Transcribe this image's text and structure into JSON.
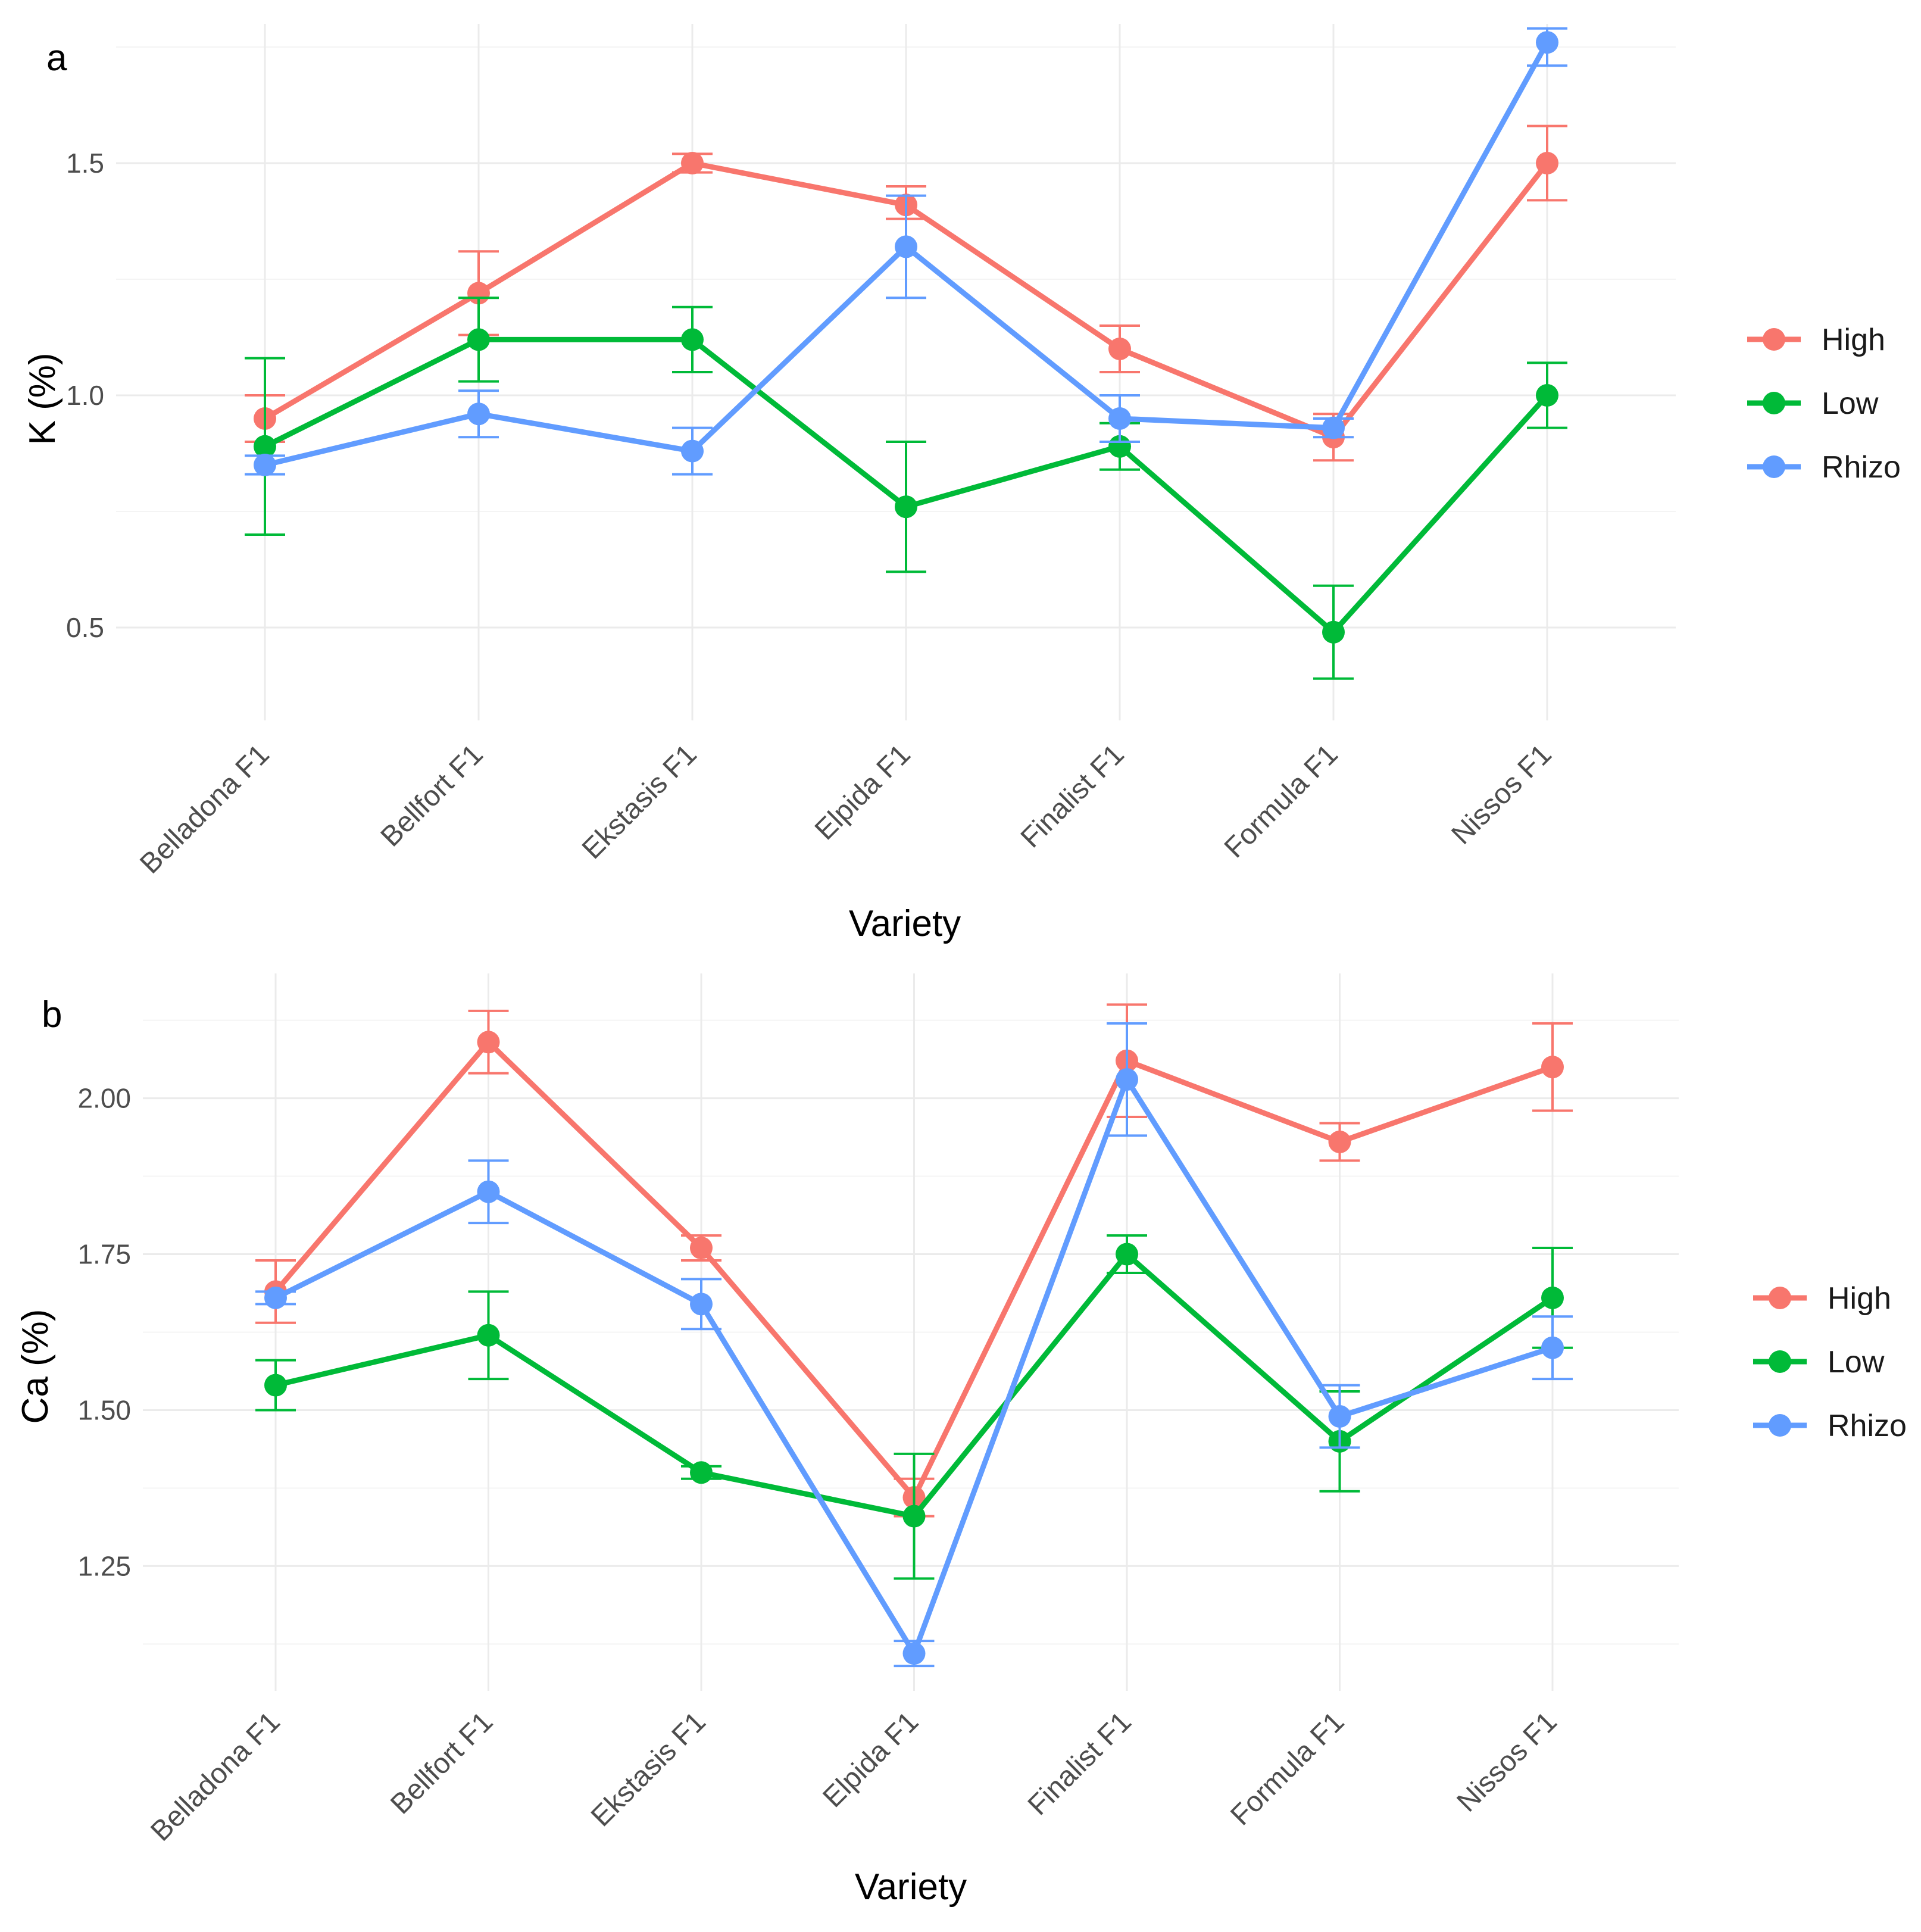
{
  "chart_data": [
    {
      "type": "line",
      "panel_label": "a",
      "xlabel": "Variety",
      "ylabel": "K (%)",
      "ylim": [
        0.3,
        1.8
      ],
      "yticks": [
        0.5,
        1.0,
        1.5
      ],
      "ytick_labels": [
        "0.5",
        "1.0",
        "1.5"
      ],
      "categories": [
        "Belladona F1",
        "Bellfort F1",
        "Ekstasis F1",
        "Elpida F1",
        "Finalist F1",
        "Formula F1",
        "Nissos F1"
      ],
      "grid": true,
      "legend_position": "right",
      "series": [
        {
          "name": "High",
          "color": "#F8766D",
          "values": [
            0.95,
            1.22,
            1.5,
            1.41,
            1.1,
            0.91,
            1.5
          ],
          "err_low": [
            0.9,
            1.13,
            1.48,
            1.38,
            1.05,
            0.86,
            1.42
          ],
          "err_high": [
            1.0,
            1.31,
            1.52,
            1.45,
            1.15,
            0.96,
            1.58
          ]
        },
        {
          "name": "Low",
          "color": "#00BA38",
          "values": [
            0.89,
            1.12,
            1.12,
            0.76,
            0.89,
            0.49,
            1.0
          ],
          "err_low": [
            0.7,
            1.03,
            1.05,
            0.62,
            0.84,
            0.39,
            0.93
          ],
          "err_high": [
            1.08,
            1.21,
            1.19,
            0.9,
            0.94,
            0.59,
            1.07
          ]
        },
        {
          "name": "Rhizo",
          "color": "#619CFF",
          "values": [
            0.85,
            0.96,
            0.88,
            1.32,
            0.95,
            0.93,
            1.76
          ],
          "err_low": [
            0.83,
            0.91,
            0.83,
            1.21,
            0.9,
            0.91,
            1.71
          ],
          "err_high": [
            0.87,
            1.01,
            0.93,
            1.43,
            1.0,
            0.95,
            1.79
          ]
        }
      ]
    },
    {
      "type": "line",
      "panel_label": "b",
      "xlabel": "Variety",
      "ylabel": "Ca (%)",
      "ylim": [
        1.05,
        2.2
      ],
      "yticks": [
        1.25,
        1.5,
        1.75,
        2.0
      ],
      "ytick_labels": [
        "1.25",
        "1.50",
        "1.75",
        "2.00"
      ],
      "categories": [
        "Belladona F1",
        "Bellfort F1",
        "Ekstasis F1",
        "Elpida F1",
        "Finalist F1",
        "Formula F1",
        "Nissos F1"
      ],
      "grid": true,
      "legend_position": "right",
      "series": [
        {
          "name": "High",
          "color": "#F8766D",
          "values": [
            1.69,
            2.09,
            1.76,
            1.36,
            2.06,
            1.93,
            2.05
          ],
          "err_low": [
            1.64,
            2.04,
            1.74,
            1.33,
            1.97,
            1.9,
            1.98
          ],
          "err_high": [
            1.74,
            2.14,
            1.78,
            1.39,
            2.15,
            1.96,
            2.12
          ]
        },
        {
          "name": "Low",
          "color": "#00BA38",
          "values": [
            1.54,
            1.62,
            1.4,
            1.33,
            1.75,
            1.45,
            1.68
          ],
          "err_low": [
            1.5,
            1.55,
            1.39,
            1.23,
            1.72,
            1.37,
            1.6
          ],
          "err_high": [
            1.58,
            1.69,
            1.41,
            1.43,
            1.78,
            1.53,
            1.76
          ]
        },
        {
          "name": "Rhizo",
          "color": "#619CFF",
          "values": [
            1.68,
            1.85,
            1.67,
            1.11,
            2.03,
            1.49,
            1.6
          ],
          "err_low": [
            1.67,
            1.8,
            1.63,
            1.09,
            1.94,
            1.44,
            1.55
          ],
          "err_high": [
            1.69,
            1.9,
            1.71,
            1.13,
            2.12,
            1.54,
            1.65
          ]
        }
      ]
    }
  ]
}
